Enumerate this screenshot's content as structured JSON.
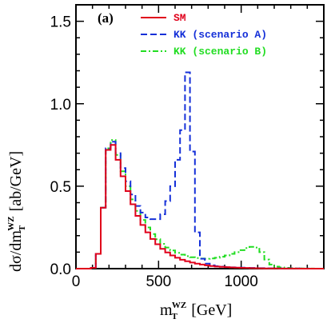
{
  "chart_data": {
    "type": "line",
    "panel_label": "(a)",
    "xlim": [
      0,
      1500
    ],
    "ylim": [
      0,
      1.6
    ],
    "x_ticks": [
      0,
      500,
      1000
    ],
    "x_tick_labels": [
      "0",
      "500",
      "1000"
    ],
    "y_ticks": [
      0,
      0.5,
      1.0,
      1.5
    ],
    "y_tick_labels": [
      "0.0",
      "0.5",
      "1.0",
      "1.5"
    ],
    "xlabel": {
      "base": "m",
      "sup": "WZ",
      "sub": "T",
      "unit": " [GeV]"
    },
    "ylabel": {
      "prefix": "dσ/dm",
      "sup": "WZ",
      "sub": "T",
      "unit": " [ab/GeV]"
    },
    "bin_width": 30,
    "bin_start": 0,
    "legend_position": "top-right",
    "series": [
      {
        "name": "SM",
        "color": "#e0001b",
        "style": "solid",
        "values": [
          0,
          0,
          0,
          0.005,
          0.09,
          0.37,
          0.72,
          0.75,
          0.66,
          0.56,
          0.47,
          0.39,
          0.32,
          0.265,
          0.22,
          0.18,
          0.148,
          0.12,
          0.098,
          0.08,
          0.066,
          0.054,
          0.045,
          0.037,
          0.03,
          0.025,
          0.02,
          0.016,
          0.013,
          0.011,
          0.009,
          0.007,
          0.006,
          0.005,
          0.004,
          0.003,
          0.0025,
          0.002,
          0.0015,
          0.001,
          0.001,
          0.0008,
          0.0006,
          0.0005,
          0.0004,
          0.0003,
          0.0002,
          0.0001,
          0,
          0
        ]
      },
      {
        "name": "KK (scenario A)",
        "color": "#1530d8",
        "style": "dashed",
        "values": [
          0,
          0,
          0,
          0.005,
          0.09,
          0.37,
          0.73,
          0.77,
          0.7,
          0.61,
          0.53,
          0.45,
          0.38,
          0.34,
          0.31,
          0.3,
          0.3,
          0.33,
          0.41,
          0.5,
          0.66,
          0.84,
          1.19,
          0.71,
          0.22,
          0.06,
          0.03,
          0.02,
          0.015,
          0.012,
          0.01,
          0.008,
          0.007,
          0.006,
          0.005,
          0.004,
          0.003,
          0.003,
          0.002,
          0.002,
          0.002,
          0.001,
          0.001,
          0.001,
          0.001,
          0.0005,
          0.0005,
          0,
          0,
          0
        ]
      },
      {
        "name": "KK (scenario B)",
        "color": "#22dd22",
        "style": "dashdot",
        "values": [
          0,
          0,
          0,
          0.005,
          0.09,
          0.37,
          0.73,
          0.78,
          0.69,
          0.59,
          0.5,
          0.42,
          0.35,
          0.295,
          0.25,
          0.21,
          0.178,
          0.15,
          0.128,
          0.11,
          0.096,
          0.085,
          0.076,
          0.069,
          0.064,
          0.061,
          0.06,
          0.062,
          0.066,
          0.072,
          0.08,
          0.09,
          0.1,
          0.112,
          0.125,
          0.132,
          0.128,
          0.1,
          0.055,
          0.025,
          0.012,
          0.007,
          0.005,
          0.003,
          0.002,
          0.0015,
          0.001,
          0.0005,
          0,
          0
        ]
      }
    ]
  }
}
